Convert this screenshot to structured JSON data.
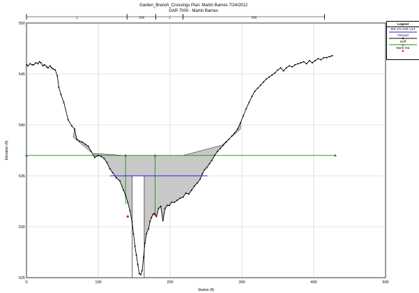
{
  "chart_title": "Garden_Branch_Crossings      Plan: Martin Barnes    7/24/2012",
  "chart_subtitle": "GAR 7000 - Martin Barnes",
  "colors": {
    "water_line": "#1e1ee8",
    "ground": "#000000",
    "ineff": "#1a8a1a",
    "bank": "#e01010",
    "fill": "#c8c8c8",
    "grid": "#c8c8c8"
  },
  "chart_data": {
    "type": "line",
    "xlabel": "Station (ft)",
    "ylabel": "Elevation (ft)",
    "xlim": [
      0,
      500
    ],
    "ylim": [
      525,
      550
    ],
    "xticks": [
      0,
      100,
      200,
      300,
      400,
      500
    ],
    "yticks": [
      525,
      530,
      535,
      540,
      545,
      550
    ],
    "top_scale": {
      "ticks": [
        0,
        140,
        180,
        218,
        415
      ],
      "labels": [
        ".1",
        ".065",
        ".1",
        ".065"
      ]
    },
    "series": [
      {
        "name": "WS 1% ACE ULT",
        "kind": "water",
        "x": [
          116,
          252
        ],
        "y": [
          535,
          535
        ]
      },
      {
        "name": "Ground",
        "kind": "ground",
        "x": [
          0,
          2,
          5,
          8,
          10,
          13,
          16,
          18,
          20,
          23,
          25,
          28,
          30,
          33,
          35,
          37,
          40,
          43,
          45,
          48,
          52,
          58,
          63,
          67,
          70,
          74,
          78,
          82,
          86,
          90,
          95,
          100,
          104,
          108,
          112,
          116,
          120,
          125,
          130,
          135,
          138,
          141,
          144,
          147,
          149,
          151,
          153,
          155,
          157,
          159,
          161,
          163,
          165,
          167,
          170,
          172,
          174,
          176,
          178,
          181,
          184,
          187,
          190,
          193,
          196,
          199,
          202,
          206,
          210,
          214,
          218,
          222,
          226,
          230,
          234,
          238,
          242,
          245,
          248,
          251,
          255,
          258,
          262,
          266,
          270,
          274,
          278,
          282,
          286,
          290,
          294,
          298,
          302,
          306,
          310,
          314,
          318,
          322,
          326,
          330,
          334,
          338,
          342,
          346,
          350,
          354,
          358,
          362,
          366,
          370,
          374,
          378,
          382,
          386,
          390,
          394,
          398,
          402,
          406,
          410,
          414,
          418,
          422,
          426
        ],
        "y": [
          545.9,
          545.8,
          546.0,
          545.9,
          545.9,
          546.1,
          546.0,
          546.2,
          546.1,
          545.8,
          545.9,
          545.7,
          545.6,
          545.8,
          545.6,
          545.5,
          545.4,
          544.8,
          543.7,
          543.0,
          542.2,
          540.5,
          539.9,
          539.6,
          538.6,
          538.4,
          538.3,
          538.1,
          537.9,
          537.4,
          536.8,
          537.0,
          536.9,
          536.7,
          536.3,
          535.7,
          535.3,
          534.8,
          534.5,
          533.6,
          533.1,
          532.4,
          531.6,
          530.5,
          529.3,
          528.1,
          527.2,
          526.3,
          525.4,
          525.3,
          525.7,
          527.0,
          528.4,
          529.3,
          529.8,
          530.5,
          530.9,
          531.2,
          531.3,
          531.0,
          531.8,
          532.0,
          530.6,
          531.8,
          532.1,
          532.1,
          532.4,
          532.4,
          532.6,
          532.8,
          532.9,
          533.3,
          533.2,
          533.6,
          534.0,
          534.3,
          534.7,
          535.2,
          535.6,
          535.8,
          536.2,
          536.5,
          537.0,
          537.4,
          537.7,
          538.0,
          538.3,
          538.6,
          538.9,
          539.2,
          539.6,
          540.2,
          540.9,
          541.6,
          542.2,
          542.8,
          543.3,
          543.6,
          543.9,
          544.2,
          544.5,
          544.7,
          544.9,
          545.1,
          545.4,
          545.6,
          545.3,
          545.6,
          545.8,
          545.7,
          545.9,
          546.0,
          546.1,
          546.2,
          546.0,
          546.3,
          546.1,
          546.3,
          546.5,
          546.4,
          546.6,
          546.6,
          546.7,
          546.8
        ]
      },
      {
        "name": "Ineff",
        "kind": "ineff",
        "x": [
          0,
          430
        ],
        "y": [
          537,
          537
        ]
      },
      {
        "name": "Bank Sta",
        "kind": "bank",
        "x": [
          141,
          179
        ],
        "y": [
          531,
          531.2
        ]
      }
    ],
    "ineff_walls": [
      {
        "x": 138,
        "y0": 532.2,
        "y1": 537
      },
      {
        "x": 179,
        "y0": 531.2,
        "y1": 537
      }
    ],
    "ineff_markers": [
      {
        "x": 0,
        "y": 537
      },
      {
        "x": 138,
        "y": 537
      },
      {
        "x": 179,
        "y": 537
      },
      {
        "x": 430,
        "y": 537
      }
    ],
    "blocked": {
      "x0": 147,
      "x1": 164,
      "ytop": 535
    },
    "fill_top": [
      [
        65,
        538.8
      ],
      [
        92,
        537.2
      ],
      [
        135,
        537
      ],
      [
        180,
        537
      ],
      [
        218,
        537
      ],
      [
        272,
        538
      ],
      [
        298,
        539.6
      ]
    ]
  },
  "legend": {
    "title": "Legend",
    "items": [
      {
        "label": "WS 1% ACE ULT",
        "kind": "water"
      },
      {
        "label": "Ground",
        "kind": "ground"
      },
      {
        "label": "Ineff",
        "kind": "ineff"
      },
      {
        "label": "Bank Sta",
        "kind": "bank"
      }
    ]
  }
}
